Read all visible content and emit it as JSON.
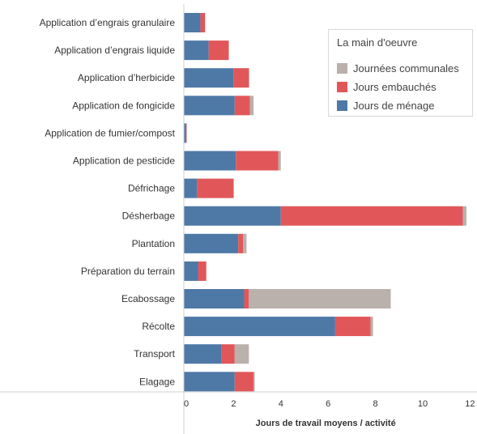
{
  "chart_data": {
    "type": "bar",
    "orientation": "horizontal",
    "stacked": true,
    "categories": [
      "Application d’engrais granulaire",
      "Application d’engrais liquide",
      "Application d’herbicide",
      "Application de fongicide",
      "Application de fumier/compost",
      "Application de pesticide",
      "Défrichage",
      "Désherbage",
      "Plantation",
      "Préparation du terrain",
      "Ecabossage",
      "Récolte",
      "Transport",
      "Elagage"
    ],
    "series": [
      {
        "name": "Jours de ménage",
        "color": "#4e79a7",
        "values": [
          0.7,
          1.05,
          2.1,
          2.15,
          0.1,
          2.2,
          0.55,
          4.1,
          2.3,
          0.6,
          2.55,
          6.4,
          1.6,
          2.15
        ]
      },
      {
        "name": "Jours embauchés",
        "color": "#e15759",
        "values": [
          0.2,
          0.85,
          0.65,
          0.65,
          0.02,
          1.8,
          1.55,
          7.7,
          0.2,
          0.35,
          0.2,
          1.5,
          0.55,
          0.8
        ]
      },
      {
        "name": "Journées communales",
        "color": "#bab0ac",
        "values": [
          0.0,
          0.0,
          0.02,
          0.15,
          0.0,
          0.1,
          0.02,
          0.15,
          0.15,
          0.0,
          6.0,
          0.1,
          0.6,
          0.05
        ]
      }
    ],
    "xlabel": "Jours de travail moyens / activité",
    "ylabel": "",
    "xlim": [
      0,
      12
    ],
    "xticks": [
      "0",
      "2",
      "4",
      "6",
      "8",
      "10",
      "12"
    ],
    "grid": false,
    "legend": {
      "title": "La main d'oeuvre",
      "position": "top-right",
      "items": [
        "Journées communales",
        "Jours embauchés",
        "Jours de ménage"
      ]
    }
  }
}
